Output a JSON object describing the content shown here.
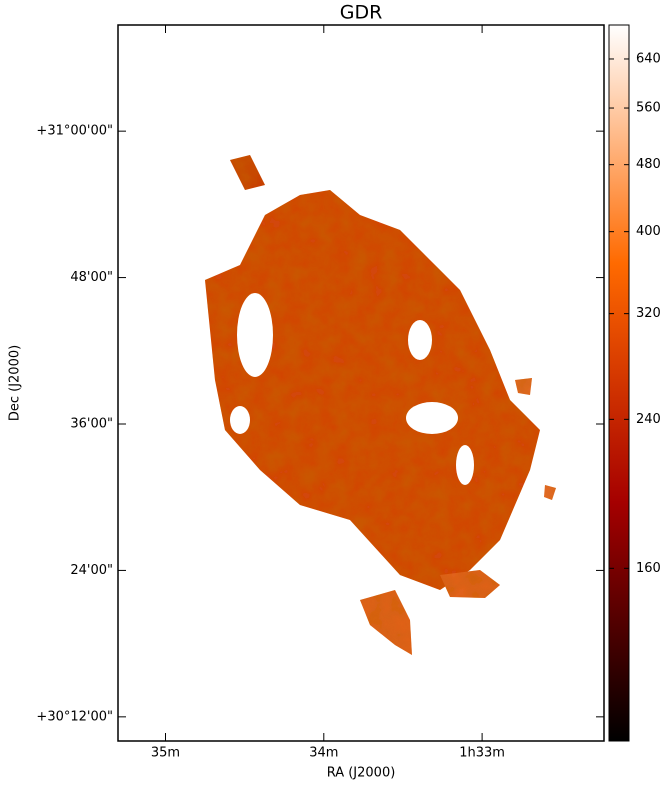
{
  "chart_data": {
    "type": "image",
    "title": "GDR",
    "xlabel": "RA (J2000)",
    "ylabel": "Dec (J2000)",
    "xlim": [
      95.3,
      92.23
    ],
    "xticks": [
      {
        "value": 95,
        "label": "35m"
      },
      {
        "value": 94,
        "label": "34m"
      },
      {
        "value": 93,
        "label": "1h33m"
      }
    ],
    "ylim": [
      30.167,
      31.145
    ],
    "yticks": [
      {
        "value": 31.0,
        "label": "+31°00'00\""
      },
      {
        "value": 30.8,
        "label": "48'00\""
      },
      {
        "value": 30.6,
        "label": "36'00\""
      },
      {
        "value": 30.4,
        "label": "24'00\""
      },
      {
        "value": 30.2,
        "label": "+30°12'00\""
      }
    ],
    "colorbar": {
      "scale": "log",
      "lim": [
        100,
        702
      ],
      "ticks": [
        160,
        240,
        320,
        400,
        480,
        560,
        640
      ],
      "colors": [
        "#000000",
        "#a50000",
        "#ff6a00",
        "#ffffff"
      ]
    }
  }
}
